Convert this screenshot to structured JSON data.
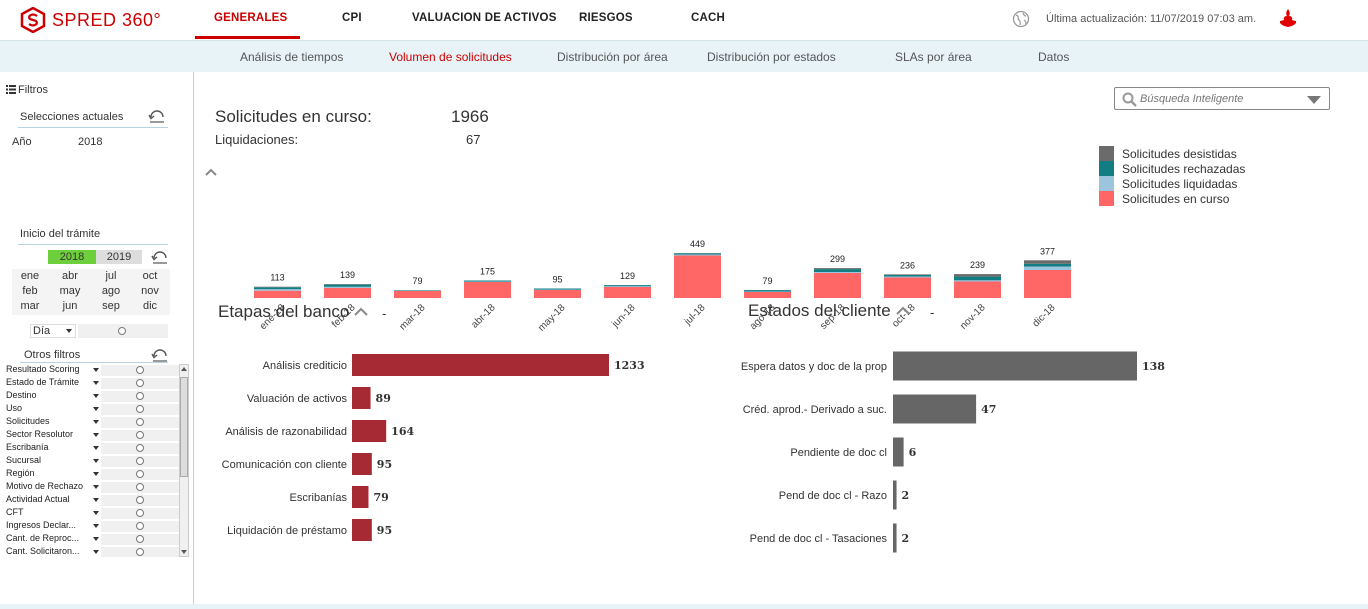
{
  "app": {
    "name": "SPRED 360°"
  },
  "nav": {
    "tabs": [
      {
        "label": "GENERALES"
      },
      {
        "label": "CPI"
      },
      {
        "label": "VALUACION DE ACTIVOS"
      },
      {
        "label": "RIESGOS"
      },
      {
        "label": "CACH"
      }
    ],
    "active_tab": "GENERALES",
    "last_update": "Última actualización: 11/07/2019 07:03 am.",
    "accent": "#cc0000"
  },
  "subnav": {
    "tabs": [
      {
        "label": "Análisis de tiempos"
      },
      {
        "label": "Volumen de solicitudes"
      },
      {
        "label": "Distribución por área"
      },
      {
        "label": "Distribución por estados"
      },
      {
        "label": "SLAs por área"
      },
      {
        "label": "Datos"
      }
    ],
    "active_tab": "Volumen de solicitudes"
  },
  "sidebar": {
    "filters_label": "Filtros",
    "current_selections": {
      "title": "Selecciones actuales",
      "field": "Año",
      "value": "2018"
    },
    "start": {
      "title": "Inicio del trámite",
      "years": [
        {
          "label": "2018",
          "selected": true
        },
        {
          "label": "2019",
          "selected": false
        }
      ],
      "months": [
        "ene",
        "abr",
        "jul",
        "oct",
        "feb",
        "may",
        "ago",
        "nov",
        "mar",
        "jun",
        "sep",
        "dic"
      ],
      "granularity": "Día"
    },
    "other_filters": {
      "title": "Otros filtros",
      "items": [
        "Resultado Scoring",
        "Estado de Trámite",
        "Destino",
        "Uso",
        "Solicitudes",
        "Sector Resolutor",
        "Escribanía",
        "Sucursal",
        "Región",
        "Motivo de Rechazo",
        "Actividad Actual",
        "CFT",
        "Ingresos Declar...",
        "Cant. de Reproc...",
        "Cant. Solicitaron..."
      ]
    }
  },
  "search": {
    "placeholder": "Búsqueda Inteligente"
  },
  "kpis": {
    "in_progress_label": "Solicitudes en curso:",
    "in_progress_value": "1966",
    "liquidations_label": "Liquidaciones:",
    "liquidations_value": "67"
  },
  "legend": [
    {
      "label": "Solicitudes desistidas",
      "color": "#6b6b6b"
    },
    {
      "label": "Solicitudes rechazadas",
      "color": "#127e84"
    },
    {
      "label": "Solicitudes liquidadas",
      "color": "#9cc4dd"
    },
    {
      "label": "Solicitudes en curso",
      "color": "#ff6666"
    }
  ],
  "sections": {
    "bank_stages": {
      "title": "Etapas del banco",
      "dash": "-"
    },
    "client_states": {
      "title": "Estados del cliente",
      "dash": "-"
    }
  },
  "chart_data": [
    {
      "type": "bar",
      "stacked": true,
      "categories": [
        "ene-18",
        "feb-18",
        "mar-18",
        "abr-18",
        "may-18",
        "jun-18",
        "jul-18",
        "ago-18",
        "sep-18",
        "oct-18",
        "nov-18",
        "dic-18"
      ],
      "totals": [
        113,
        139,
        79,
        175,
        95,
        129,
        449,
        79,
        299,
        236,
        239,
        377
      ],
      "series": [
        {
          "name": "Solicitudes en curso",
          "values": [
            73,
            100,
            70,
            160,
            80,
            110,
            425,
            60,
            250,
            205,
            165,
            280
          ]
        },
        {
          "name": "Solicitudes liquidadas",
          "values": [
            15,
            12,
            3,
            5,
            5,
            8,
            10,
            5,
            10,
            10,
            12,
            35
          ]
        },
        {
          "name": "Solicitudes rechazadas",
          "values": [
            20,
            22,
            5,
            10,
            10,
            11,
            12,
            14,
            29,
            15,
            37,
            27
          ]
        },
        {
          "name": "Solicitudes desistidas",
          "values": [
            5,
            5,
            1,
            0,
            0,
            0,
            2,
            0,
            10,
            6,
            25,
            35
          ]
        }
      ],
      "colors": [
        "#ff6666",
        "#9cc4dd",
        "#127e84",
        "#6b6b6b"
      ],
      "legend_position": "right",
      "grid": false
    },
    {
      "type": "bar",
      "orientation": "horizontal",
      "categories": [
        "Análisis crediticio",
        "Valuación de activos",
        "Análisis de razonabilidad",
        "Comunicación con cliente",
        "Escribanías",
        "Liquidación de préstamo"
      ],
      "values": [
        1233,
        89,
        164,
        95,
        79,
        95
      ],
      "color": "#a52a33"
    },
    {
      "type": "bar",
      "orientation": "horizontal",
      "categories": [
        "Espera datos y doc de la prop",
        "Créd. aprod.- Derivado a suc.",
        "Pendiente de doc cl",
        "Pend de doc cl - Razo",
        "Pend de doc cl - Tasaciones"
      ],
      "values": [
        138,
        47,
        6,
        2,
        2
      ],
      "color": "#666666"
    }
  ]
}
